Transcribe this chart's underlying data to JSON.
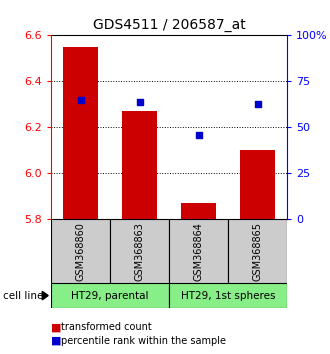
{
  "title": "GDS4511 / 206587_at",
  "samples": [
    "GSM368860",
    "GSM368863",
    "GSM368864",
    "GSM368865"
  ],
  "cell_line_groups": [
    {
      "label": "HT29, parental",
      "start": 0,
      "end": 2
    },
    {
      "label": "HT29, 1st spheres",
      "start": 2,
      "end": 4
    }
  ],
  "transformed_counts": [
    6.55,
    6.27,
    5.87,
    6.1
  ],
  "percentile_ranks": [
    65,
    64,
    46,
    63
  ],
  "y_min": 5.8,
  "y_max": 6.6,
  "y_ticks": [
    5.8,
    6.0,
    6.2,
    6.4,
    6.6
  ],
  "y2_ticks": [
    0,
    25,
    50,
    75,
    100
  ],
  "y2_labels": [
    "0",
    "25",
    "50",
    "75",
    "100%"
  ],
  "bar_color": "#cc0000",
  "dot_color": "#0000cc",
  "cell_line_label": "cell line",
  "legend_bar": "transformed count",
  "legend_dot": "percentile rank within the sample",
  "sample_box_color": "#cccccc",
  "cell_line_box_color": "#88ee88",
  "bg_color": "#ffffff",
  "title_fontsize": 10,
  "tick_fontsize": 8,
  "sample_fontsize": 7,
  "cellline_fontsize": 7.5,
  "legend_fontsize": 7
}
